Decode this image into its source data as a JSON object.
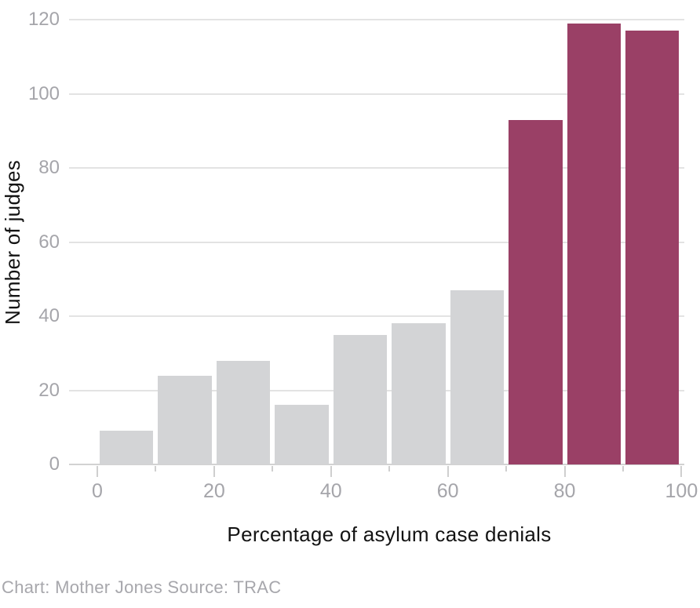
{
  "chart_data": {
    "type": "bar",
    "subtype": "histogram",
    "title": "",
    "xlabel": "Percentage of asylum case denials",
    "ylabel": "Number of judges",
    "footer": "Chart: Mother Jones Source: TRAC",
    "categories": [
      "0-10",
      "10-20",
      "20-30",
      "30-40",
      "40-50",
      "50-60",
      "60-70",
      "70-80",
      "80-90",
      "90-100"
    ],
    "values": [
      9,
      24,
      28,
      16,
      35,
      38,
      47,
      93,
      119,
      117
    ],
    "highlighted_from_index": 7,
    "xlim": [
      0,
      100
    ],
    "ylim": [
      0,
      120
    ],
    "y_ticks": [
      0,
      20,
      40,
      60,
      80,
      100,
      120
    ],
    "x_major_ticks": [
      0,
      20,
      40,
      60,
      80,
      100
    ],
    "x_minor_ticks": [
      10,
      30,
      50,
      70,
      90
    ],
    "grid": "horizontal",
    "legend": "none",
    "colors": {
      "bar_default": "#d3d4d6",
      "bar_highlight": "#9a4066",
      "gridline": "#e3e3e3",
      "axis_line": "#d2d2d2",
      "tick": "#cfcfcf",
      "tick_label": "#a5a5aa",
      "axis_title": "#131313",
      "footer_text": "#a7a7ac"
    }
  }
}
